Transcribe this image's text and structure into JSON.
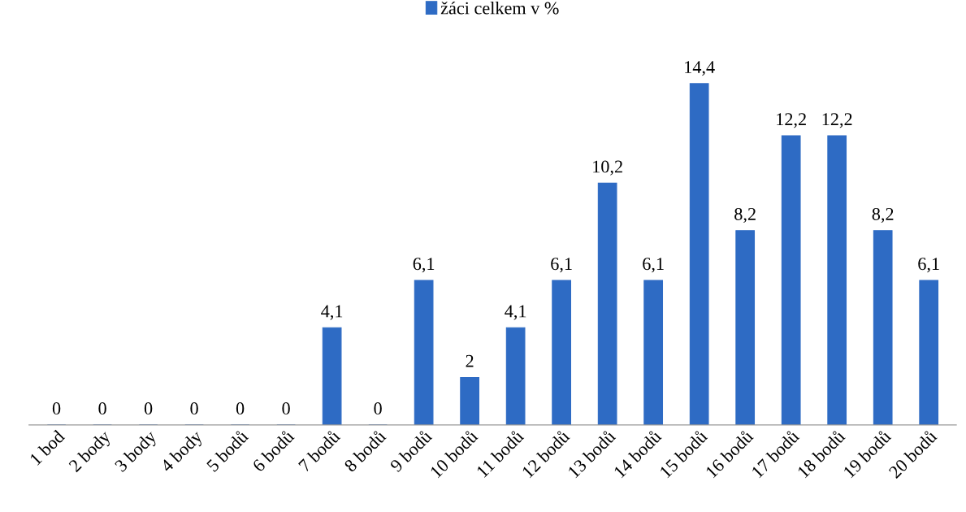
{
  "chart_data": {
    "type": "bar",
    "categories": [
      "1 bod",
      "2 body",
      "3 body",
      "4 body",
      "5 bodů",
      "6 bodů",
      "7 bodů",
      "8 bodů",
      "9 bodů",
      "10 bodů",
      "11 bodů",
      "12 bodů",
      "13 bodů",
      "14 bodů",
      "15 bodů",
      "16 bodů",
      "17 bodů",
      "18 bodů",
      "19 bodů",
      "20 bodů"
    ],
    "series": [
      {
        "name": "žáci celkem v %",
        "color": "#2e6bc4",
        "values": [
          0,
          0,
          0,
          0,
          0,
          0,
          4.1,
          0,
          6.1,
          2,
          4.1,
          6.1,
          10.2,
          6.1,
          14.4,
          8.2,
          12.2,
          12.2,
          8.2,
          6.1
        ],
        "value_labels": [
          "0",
          "0",
          "0",
          "0",
          "0",
          "0",
          "4,1",
          "0",
          "6,1",
          "2",
          "4,1",
          "6,1",
          "10,2",
          "6,1",
          "14,4",
          "8,2",
          "12,2",
          "12,2",
          "8,2",
          "6,1"
        ]
      }
    ],
    "legend": "top",
    "grid": false
  }
}
